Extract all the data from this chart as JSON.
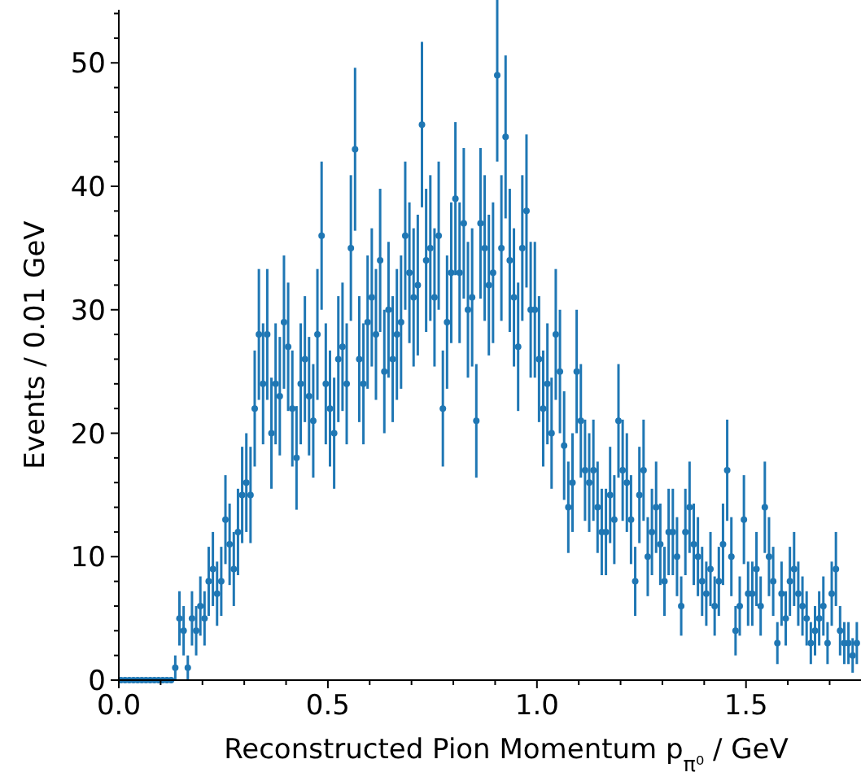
{
  "chart_data": {
    "type": "scatter",
    "xlabel": "Reconstructed Pion Momentum p$_{π⁰}$ / GeV",
    "ylabel": "Events / 0.01 GeV",
    "marker": "circle",
    "grid": false,
    "xlim": [
      0,
      1.775
    ],
    "ylim": [
      0,
      54.3
    ],
    "xticks": [
      {
        "value": 0,
        "label": "0.0"
      },
      {
        "value": 0.1,
        "label": null
      },
      {
        "value": 0.2,
        "label": null
      },
      {
        "value": 0.3,
        "label": null
      },
      {
        "value": 0.4,
        "label": null
      },
      {
        "value": 0.5,
        "label": "0.5"
      },
      {
        "value": 0.6,
        "label": null
      },
      {
        "value": 0.7,
        "label": null
      },
      {
        "value": 0.8,
        "label": null
      },
      {
        "value": 0.9,
        "label": null
      },
      {
        "value": 1,
        "label": "1.0"
      },
      {
        "value": 1.1,
        "label": null
      },
      {
        "value": 1.2,
        "label": null
      },
      {
        "value": 1.3,
        "label": null
      },
      {
        "value": 1.4,
        "label": null
      },
      {
        "value": 1.5,
        "label": "1.5"
      },
      {
        "value": 1.6,
        "label": null
      },
      {
        "value": 1.7,
        "label": null
      }
    ],
    "yticks": [
      0,
      {
        "value": 2,
        "label": null
      },
      {
        "value": 4,
        "label": null
      },
      {
        "value": 6,
        "label": null
      },
      {
        "value": 8,
        "label": null
      },
      10,
      {
        "value": 12,
        "label": null
      },
      {
        "value": 14,
        "label": null
      },
      {
        "value": 16,
        "label": null
      },
      {
        "value": 18,
        "label": null
      },
      20,
      {
        "value": 22,
        "label": null
      },
      {
        "value": 24,
        "label": null
      },
      {
        "value": 26,
        "label": null
      },
      {
        "value": 28,
        "label": null
      },
      30,
      {
        "value": 32,
        "label": null
      },
      {
        "value": 34,
        "label": null
      },
      {
        "value": 36,
        "label": null
      },
      {
        "value": 38,
        "label": null
      },
      40,
      {
        "value": 42,
        "label": null
      },
      {
        "value": 44,
        "label": null
      },
      {
        "value": 46,
        "label": null
      },
      {
        "value": 48,
        "label": null
      },
      50,
      {
        "value": 52,
        "label": null
      },
      {
        "value": 54,
        "label": null
      }
    ],
    "series": [
      {
        "color": "#1f77b4",
        "x": [
          0.005,
          0.015,
          0.025,
          0.035,
          0.045,
          0.055,
          0.065,
          0.075,
          0.085,
          0.095,
          0.105,
          0.115,
          0.125,
          0.135,
          0.145,
          0.155,
          0.165,
          0.175,
          0.185,
          0.195,
          0.205,
          0.215,
          0.225,
          0.235,
          0.245,
          0.255,
          0.265,
          0.275,
          0.285,
          0.295,
          0.305,
          0.315,
          0.325,
          0.335,
          0.345,
          0.355,
          0.365,
          0.375,
          0.385,
          0.395,
          0.405,
          0.415,
          0.425,
          0.435,
          0.445,
          0.455,
          0.465,
          0.475,
          0.485,
          0.495,
          0.505,
          0.515,
          0.525,
          0.535,
          0.545,
          0.555,
          0.565,
          0.575,
          0.585,
          0.595,
          0.605,
          0.615,
          0.625,
          0.635,
          0.645,
          0.655,
          0.665,
          0.675,
          0.685,
          0.695,
          0.705,
          0.715,
          0.725,
          0.735,
          0.745,
          0.755,
          0.765,
          0.775,
          0.785,
          0.795,
          0.805,
          0.815,
          0.825,
          0.835,
          0.845,
          0.855,
          0.865,
          0.875,
          0.885,
          0.895,
          0.905,
          0.915,
          0.925,
          0.935,
          0.945,
          0.955,
          0.965,
          0.975,
          0.985,
          0.995,
          1.005,
          1.015,
          1.025,
          1.035,
          1.045,
          1.055,
          1.065,
          1.075,
          1.085,
          1.095,
          1.105,
          1.115,
          1.125,
          1.135,
          1.145,
          1.155,
          1.165,
          1.175,
          1.185,
          1.195,
          1.205,
          1.215,
          1.225,
          1.235,
          1.245,
          1.255,
          1.265,
          1.275,
          1.285,
          1.295,
          1.305,
          1.315,
          1.325,
          1.335,
          1.345,
          1.355,
          1.365,
          1.375,
          1.385,
          1.395,
          1.405,
          1.415,
          1.425,
          1.435,
          1.445,
          1.455,
          1.465,
          1.475,
          1.485,
          1.495,
          1.505,
          1.515,
          1.525,
          1.535,
          1.545,
          1.555,
          1.565,
          1.575,
          1.585,
          1.595,
          1.605,
          1.615,
          1.625,
          1.635,
          1.645,
          1.655,
          1.665,
          1.675,
          1.685,
          1.695,
          1.705,
          1.715,
          1.725,
          1.735,
          1.745,
          1.755,
          1.765
        ],
        "values": [
          0,
          0,
          0,
          0,
          0,
          0,
          0,
          0,
          0,
          0,
          0,
          0,
          0,
          1,
          5,
          4,
          1,
          5,
          4,
          6,
          5,
          8,
          9,
          7,
          8,
          13,
          11,
          9,
          12,
          15,
          16,
          15,
          22,
          28,
          24,
          28,
          20,
          24,
          23,
          29,
          27,
          22,
          18,
          24,
          26,
          23,
          21,
          28,
          36,
          24,
          22,
          20,
          26,
          27,
          24,
          35,
          43,
          26,
          24,
          29,
          31,
          28,
          34,
          25,
          30,
          26,
          28,
          29,
          36,
          33,
          31,
          32,
          45,
          34,
          35,
          31,
          36,
          22,
          29,
          33,
          39,
          33,
          37,
          30,
          31,
          21,
          37,
          35,
          32,
          33,
          49,
          35,
          44,
          34,
          31,
          27,
          35,
          38,
          30,
          30,
          26,
          22,
          24,
          20,
          28,
          25,
          19,
          14,
          16,
          25,
          21,
          17,
          16,
          17,
          14,
          12,
          12,
          15,
          13,
          21,
          17,
          16,
          13,
          8,
          15,
          17,
          10,
          12,
          14,
          11,
          8,
          12,
          12,
          10,
          6,
          12,
          14,
          11,
          10,
          8,
          7,
          9,
          6,
          8,
          11,
          17,
          10,
          4,
          6,
          13,
          7,
          7,
          9,
          6,
          14,
          10,
          8,
          3,
          7,
          5,
          8,
          9,
          7,
          6,
          5,
          3,
          4,
          5,
          6,
          3,
          7,
          9,
          4,
          3,
          3,
          2,
          3
        ],
        "errors": [
          0,
          0,
          0,
          0,
          0,
          0,
          0,
          0,
          0,
          0,
          0,
          0,
          0,
          1,
          2.2,
          2,
          1,
          2.2,
          2,
          2.4,
          2.2,
          2.8,
          3,
          2.6,
          2.8,
          3.6,
          3.3,
          3,
          3.5,
          3.9,
          4,
          3.9,
          4.7,
          5.3,
          4.9,
          5.3,
          4.5,
          4.9,
          4.8,
          5.4,
          5.2,
          4.7,
          4.2,
          4.9,
          5.1,
          4.8,
          4.6,
          5.3,
          6,
          4.9,
          4.7,
          4.5,
          5.1,
          5.2,
          4.9,
          5.9,
          6.6,
          5.1,
          4.9,
          5.4,
          5.6,
          5.3,
          5.8,
          5,
          5.5,
          5.1,
          5.3,
          5.4,
          6,
          5.7,
          5.6,
          5.7,
          6.7,
          5.8,
          5.9,
          5.6,
          6,
          4.7,
          5.4,
          5.7,
          6.2,
          5.7,
          6.1,
          5.5,
          5.6,
          4.6,
          6.1,
          5.9,
          5.7,
          5.7,
          7,
          5.9,
          6.6,
          5.8,
          5.6,
          5.2,
          5.9,
          6.2,
          5.5,
          5.5,
          5.1,
          4.7,
          4.9,
          4.5,
          5.3,
          5,
          4.4,
          3.7,
          4,
          5,
          4.6,
          4.1,
          4,
          4.1,
          3.7,
          3.5,
          3.5,
          3.9,
          3.6,
          4.6,
          4.1,
          4,
          3.6,
          2.8,
          3.9,
          4.1,
          3.2,
          3.5,
          3.7,
          3.3,
          2.8,
          3.5,
          3.5,
          3.2,
          2.4,
          3.5,
          3.7,
          3.3,
          3.2,
          2.8,
          2.6,
          3,
          2.4,
          2.8,
          3.3,
          4.1,
          3.2,
          2,
          2.4,
          3.6,
          2.6,
          2.6,
          3,
          2.4,
          3.7,
          3.2,
          2.8,
          1.7,
          2.6,
          2.2,
          2.8,
          3,
          2.6,
          2.4,
          2.2,
          1.7,
          2,
          2.2,
          2.4,
          1.7,
          2.6,
          3,
          2,
          1.7,
          1.7,
          1.4,
          1.7
        ]
      }
    ]
  }
}
